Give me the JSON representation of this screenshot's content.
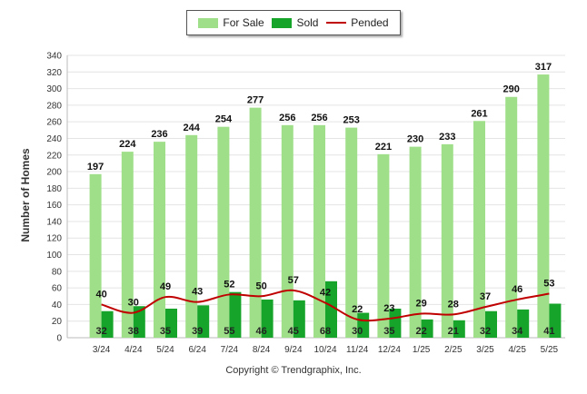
{
  "legend": {
    "for_sale": "For Sale",
    "sold": "Sold",
    "pended": "Pended"
  },
  "colors": {
    "for_sale": "#a0df8a",
    "sold": "#16a42a",
    "pended": "#c00000"
  },
  "copyright": "Copyright © Trendgraphix, Inc.",
  "chart_data": {
    "type": "bar",
    "title": "",
    "xlabel": "",
    "ylabel": "Number of Homes",
    "ylim": [
      0,
      340
    ],
    "yticks": [
      0,
      20,
      40,
      60,
      80,
      100,
      120,
      140,
      160,
      180,
      200,
      220,
      240,
      260,
      280,
      300,
      320,
      340
    ],
    "grid": true,
    "legend_position": "top-center",
    "categories": [
      "3/24",
      "4/24",
      "5/24",
      "6/24",
      "7/24",
      "8/24",
      "9/24",
      "10/24",
      "11/24",
      "12/24",
      "1/25",
      "2/25",
      "3/25",
      "4/25",
      "5/25"
    ],
    "series": [
      {
        "name": "For Sale",
        "type": "bar",
        "values": [
          197,
          224,
          236,
          244,
          254,
          277,
          256,
          256,
          253,
          221,
          230,
          233,
          261,
          290,
          317
        ]
      },
      {
        "name": "Sold",
        "type": "bar",
        "values": [
          32,
          38,
          35,
          39,
          55,
          46,
          45,
          68,
          30,
          35,
          22,
          21,
          32,
          34,
          41
        ]
      },
      {
        "name": "Pended",
        "type": "line",
        "values": [
          40,
          30,
          49,
          43,
          52,
          50,
          57,
          42,
          22,
          23,
          29,
          28,
          37,
          46,
          53
        ]
      }
    ]
  }
}
